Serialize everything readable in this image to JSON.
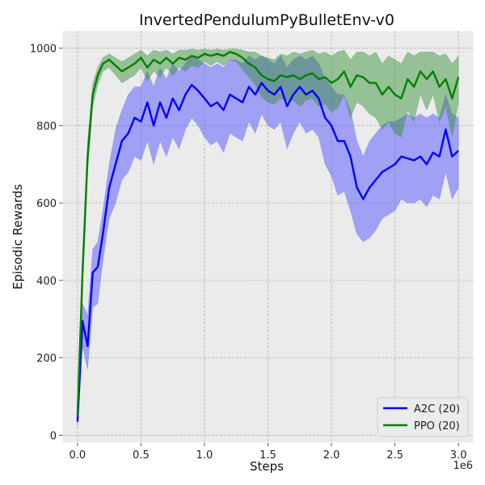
{
  "chart_data": {
    "type": "line",
    "title": "InvertedPendulumPyBulletEnv-v0",
    "xlabel": "Steps",
    "ylabel": "Episodic Rewards",
    "x_offset_label": "1e6",
    "xlim": [
      -0.12,
      3.12
    ],
    "ylim": [
      -20,
      1045
    ],
    "xticks": [
      0,
      0.5,
      1.0,
      1.5,
      2.0,
      2.5,
      3.0
    ],
    "xtick_labels": [
      "0.0",
      "0.5",
      "1.0",
      "1.5",
      "2.0",
      "2.5",
      "3.0"
    ],
    "yticks": [
      0,
      200,
      400,
      600,
      800,
      1000
    ],
    "ytick_labels": [
      "0",
      "200",
      "400",
      "600",
      "800",
      "1000"
    ],
    "grid": true,
    "legend_position": "lower-right",
    "x": [
      0,
      0.04,
      0.08,
      0.12,
      0.16,
      0.2,
      0.25,
      0.3,
      0.35,
      0.4,
      0.45,
      0.5,
      0.55,
      0.6,
      0.65,
      0.7,
      0.75,
      0.8,
      0.85,
      0.9,
      0.95,
      1.0,
      1.05,
      1.1,
      1.15,
      1.2,
      1.25,
      1.3,
      1.35,
      1.4,
      1.45,
      1.5,
      1.55,
      1.6,
      1.65,
      1.7,
      1.75,
      1.8,
      1.85,
      1.9,
      1.95,
      2.0,
      2.05,
      2.1,
      2.15,
      2.2,
      2.25,
      2.3,
      2.35,
      2.4,
      2.45,
      2.5,
      2.55,
      2.6,
      2.65,
      2.7,
      2.75,
      2.8,
      2.85,
      2.9,
      2.95,
      3.0
    ],
    "series": [
      {
        "name": "A2C (20)",
        "color": "#0000ff",
        "band_color": "#4444ff",
        "values": [
          35,
          295,
          230,
          420,
          435,
          520,
          640,
          700,
          760,
          780,
          820,
          810,
          860,
          800,
          860,
          820,
          870,
          840,
          880,
          905,
          890,
          870,
          850,
          860,
          840,
          880,
          870,
          860,
          900,
          880,
          910,
          890,
          880,
          900,
          850,
          880,
          900,
          880,
          890,
          870,
          820,
          800,
          760,
          760,
          720,
          640,
          610,
          640,
          660,
          680,
          690,
          700,
          720,
          715,
          710,
          720,
          700,
          730,
          720,
          790,
          720,
          735
        ],
        "upper": [
          60,
          340,
          310,
          480,
          500,
          580,
          700,
          790,
          840,
          880,
          900,
          900,
          940,
          900,
          950,
          920,
          960,
          940,
          960,
          980,
          970,
          960,
          950,
          960,
          950,
          970,
          970,
          960,
          980,
          970,
          980,
          970,
          960,
          980,
          950,
          970,
          980,
          970,
          980,
          960,
          920,
          900,
          880,
          880,
          840,
          760,
          720,
          760,
          780,
          800,
          810,
          810,
          820,
          830,
          820,
          830,
          820,
          830,
          820,
          880,
          830,
          820
        ],
        "lower": [
          20,
          230,
          170,
          330,
          340,
          450,
          560,
          600,
          660,
          680,
          720,
          710,
          760,
          700,
          760,
          720,
          770,
          740,
          790,
          820,
          800,
          770,
          750,
          760,
          730,
          780,
          770,
          760,
          810,
          780,
          830,
          800,
          790,
          810,
          740,
          780,
          810,
          780,
          790,
          770,
          700,
          670,
          620,
          630,
          580,
          520,
          500,
          510,
          530,
          560,
          570,
          580,
          610,
          600,
          600,
          610,
          590,
          620,
          610,
          680,
          610,
          640
        ]
      },
      {
        "name": "PPO (20)",
        "color": "#008000",
        "band_color": "#2e8b2e",
        "values": [
          50,
          420,
          720,
          880,
          930,
          960,
          970,
          955,
          940,
          950,
          960,
          975,
          950,
          970,
          960,
          975,
          960,
          975,
          970,
          980,
          975,
          985,
          980,
          985,
          980,
          990,
          985,
          975,
          960,
          950,
          930,
          920,
          915,
          930,
          925,
          930,
          920,
          930,
          935,
          920,
          925,
          910,
          920,
          940,
          900,
          930,
          925,
          910,
          910,
          880,
          900,
          880,
          870,
          920,
          900,
          940,
          920,
          940,
          900,
          920,
          870,
          925
        ],
        "upper": [
          70,
          460,
          760,
          910,
          950,
          975,
          985,
          975,
          965,
          975,
          985,
          995,
          980,
          995,
          990,
          995,
          985,
          995,
          995,
          998,
          995,
          998,
          995,
          998,
          995,
          998,
          998,
          995,
          990,
          990,
          980,
          975,
          970,
          985,
          980,
          990,
          985,
          990,
          995,
          985,
          990,
          980,
          990,
          995,
          970,
          990,
          990,
          980,
          990,
          960,
          980,
          970,
          960,
          990,
          980,
          990,
          990,
          990,
          980,
          985,
          960,
          980
        ],
        "lower": [
          30,
          380,
          680,
          850,
          905,
          940,
          950,
          930,
          910,
          920,
          930,
          950,
          915,
          940,
          925,
          950,
          930,
          950,
          940,
          955,
          950,
          965,
          955,
          965,
          955,
          970,
          965,
          945,
          925,
          905,
          875,
          860,
          855,
          870,
          865,
          865,
          850,
          865,
          870,
          850,
          855,
          835,
          845,
          880,
          820,
          860,
          850,
          830,
          820,
          790,
          810,
          780,
          770,
          840,
          810,
          880,
          840,
          880,
          810,
          850,
          770,
          860
        ]
      }
    ]
  }
}
